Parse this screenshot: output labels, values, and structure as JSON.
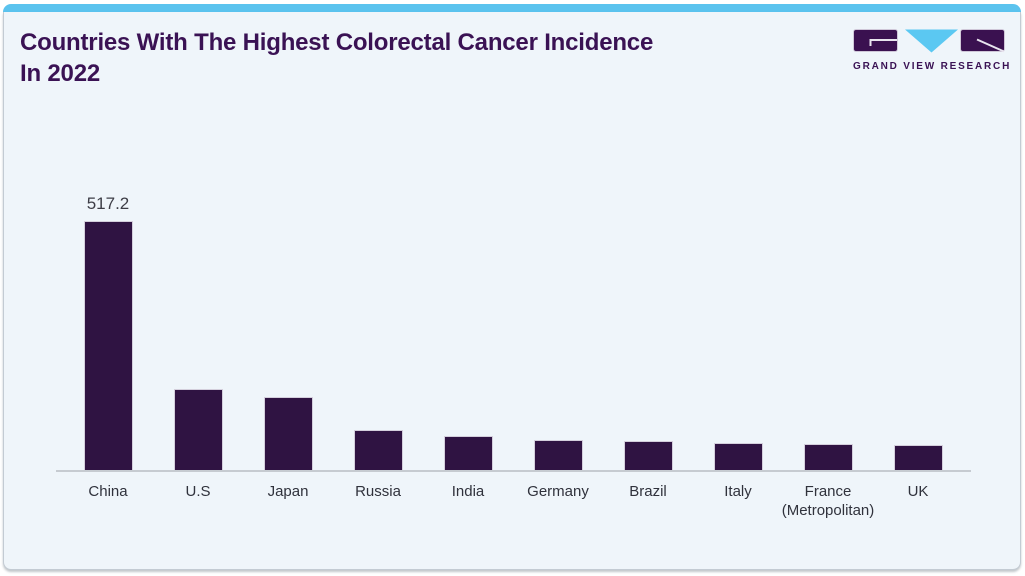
{
  "page": {
    "title": "Countries With The Highest Colorectal Cancer Incidence\nIn 2022"
  },
  "logo": {
    "wordmark": "GRAND VIEW RESEARCH"
  },
  "colors": {
    "accent_blue": "#5bc3ee",
    "bar_purple": "#2f1342",
    "title_purple": "#3a1254",
    "card_bg": "#eff5fa",
    "axis_line": "#c6cbd1",
    "value_label": "#3d3d46",
    "tick_label": "#30323c"
  },
  "chart_data": {
    "type": "bar",
    "title": "Countries With The Highest Colorectal Cancer Incidence In 2022",
    "categories": [
      "China",
      "U.S",
      "Japan",
      "Russia",
      "India",
      "Germany",
      "Brazil",
      "Italy",
      "France\n(Metropolitan)",
      "UK"
    ],
    "values": [
      517.2,
      168,
      151,
      83,
      70,
      62,
      60,
      56,
      53,
      51
    ],
    "value_labels": [
      "517.2",
      "",
      "",
      "",
      "",
      "",
      "",
      "",
      "",
      ""
    ],
    "xlabel": "",
    "ylabel": "",
    "ylim": [
      0,
      540
    ],
    "grid": false,
    "legend": false,
    "bar_color": "#2f1342"
  }
}
